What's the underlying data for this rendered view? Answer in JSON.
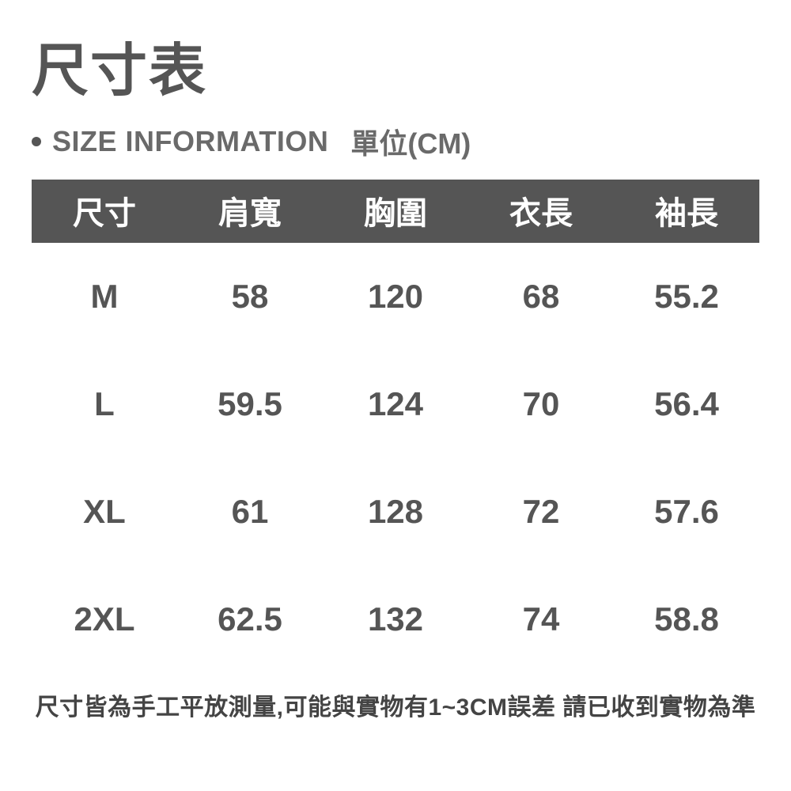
{
  "title": "尺寸表",
  "subtitle_en": "SIZE INFORMATION",
  "subtitle_unit": "單位(CM)",
  "table": {
    "type": "table",
    "header_bg": "#555555",
    "header_fg": "#ffffff",
    "body_fg": "#555555",
    "background_color": "#ffffff",
    "header_fontsize": 40,
    "cell_fontsize": 42,
    "columns": [
      "尺寸",
      "肩寬",
      "胸圍",
      "衣長",
      "袖長"
    ],
    "rows": [
      [
        "M",
        "58",
        "120",
        "68",
        "55.2"
      ],
      [
        "L",
        "59.5",
        "124",
        "70",
        "56.4"
      ],
      [
        "XL",
        "61",
        "128",
        "72",
        "57.6"
      ],
      [
        "2XL",
        "62.5",
        "132",
        "74",
        "58.8"
      ]
    ]
  },
  "footnote": "尺寸皆為手工平放測量,可能與實物有1~3CM誤差 請已收到實物為準"
}
